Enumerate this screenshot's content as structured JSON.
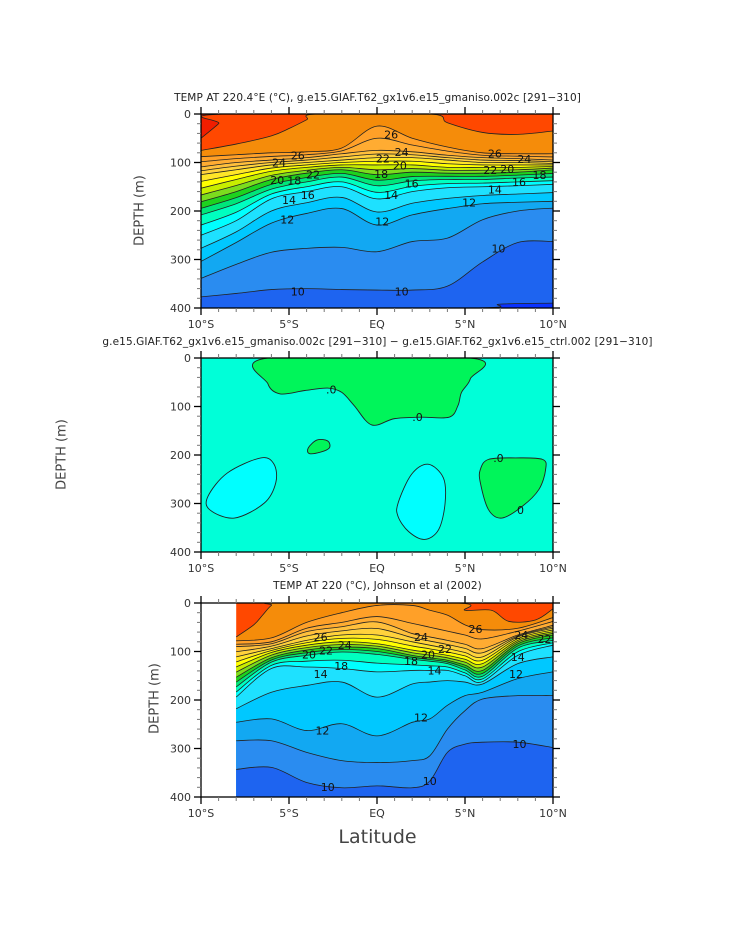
{
  "xlabel": "Latitude",
  "chart_data": [
    {
      "type": "contour",
      "id": "p1",
      "title": "TEMP AT 220.4°E (°C), g.e15.GIAF.T62_gx1v6.e15_gmaniso.002c [291−310]",
      "ylabel": "DEPTH (m)",
      "xlim": [
        -10,
        10
      ],
      "ylim": [
        400,
        0
      ],
      "xticks": [
        {
          "v": -10,
          "label": "10°S"
        },
        {
          "v": -5,
          "label": "5°S"
        },
        {
          "v": 0,
          "label": "EQ"
        },
        {
          "v": 5,
          "label": "5°N"
        },
        {
          "v": 10,
          "label": "10°N"
        }
      ],
      "yticks": [
        {
          "v": 0,
          "label": "0"
        },
        {
          "v": 100,
          "label": "100"
        },
        {
          "v": 200,
          "label": "200"
        },
        {
          "v": 300,
          "label": "300"
        },
        {
          "v": 400,
          "label": "400"
        }
      ],
      "data_lat_range": [
        -10,
        10
      ],
      "top_band": 28,
      "isotherm_lat": [
        -10,
        -8,
        -6,
        -4,
        -2,
        0,
        2,
        4,
        6,
        8,
        10
      ],
      "isotherms": {
        "10": [
          377,
          370,
          362,
          360,
          362,
          363,
          363,
          355,
          305,
          265,
          263
        ],
        "11": [
          339,
          310,
          285,
          277,
          275,
          284,
          263,
          256,
          218,
          200,
          194
        ],
        "12": [
          304,
          265,
          225,
          205,
          195,
          229,
          208,
          195,
          185,
          182,
          180
        ],
        "13": [
          277,
          243,
          200,
          183,
          172,
          202,
          184,
          174,
          168,
          165,
          162
        ],
        "14": [
          250,
          220,
          175,
          160,
          150,
          175,
          160,
          152,
          150,
          148,
          145
        ],
        "16": [
          208,
          185,
          155,
          140,
          130,
          148,
          138,
          135,
          135,
          132,
          130
        ],
        "18": [
          181,
          160,
          135,
          122,
          115,
          125,
          120,
          122,
          122,
          120,
          115
        ],
        "20": [
          153,
          135,
          118,
          110,
          105,
          105,
          105,
          110,
          110,
          110,
          108
        ],
        "22": [
          125,
          115,
          105,
          100,
          95,
          90,
          90,
          95,
          100,
          100,
          102
        ],
        "24": [
          109,
          100,
          95,
          90,
          82,
          75,
          78,
          85,
          90,
          92,
          95
        ],
        "26": [
          88,
          84,
          80,
          78,
          70,
          25,
          50,
          68,
          80,
          82,
          82
        ]
      },
      "extra_isotherms": [
        {
          "level": 27,
          "lat": [
            -10,
            -8,
            -6,
            -5,
            -4,
            -3.4,
            3,
            4,
            6,
            8,
            10
          ],
          "depth": [
            75,
            62,
            45,
            30,
            12,
            0,
            0,
            18,
            38,
            42,
            35
          ]
        },
        {
          "level": 28,
          "lat": [
            -10,
            -9,
            -8.5,
            10
          ],
          "depth": [
            50,
            20,
            0,
            0
          ]
        },
        {
          "level": 9,
          "lat": [
            -10,
            5.5,
            7,
            10
          ],
          "depth": [
            400,
            400,
            392,
            390
          ]
        }
      ],
      "labels": [
        {
          "t": "26",
          "lat": 0.8,
          "d": 42
        },
        {
          "t": "24",
          "lat": 1.4,
          "d": 78
        },
        {
          "t": "22",
          "lat": 1.3,
          "d": 92
        },
        {
          "t": "20",
          "lat": 1.3,
          "d": 106
        },
        {
          "t": "18",
          "lat": 1.2,
          "d": 124
        },
        {
          "t": "16",
          "lat": 1.0,
          "d": 143
        },
        {
          "t": "14",
          "lat": 0.8,
          "d": 167
        },
        {
          "t": "12",
          "lat": 0.3,
          "d": 222
        },
        {
          "t": "10",
          "lat": 1.4,
          "d": 366
        },
        {
          "t": "26",
          "lat": -4.5,
          "d": 86
        },
        {
          "t": "24",
          "lat": -4.6,
          "d": 100
        },
        {
          "t": "22",
          "lat": -4.6,
          "d": 112
        },
        {
          "t": "20",
          "lat": -4.7,
          "d": 124
        },
        {
          "t": "18",
          "lat": -4.7,
          "d": 137
        },
        {
          "t": "16",
          "lat": -4.9,
          "d": 155
        },
        {
          "t": "14",
          "lat": -5.0,
          "d": 177
        },
        {
          "t": "12",
          "lat": -5.1,
          "d": 218
        },
        {
          "t": "10",
          "lat": -4.5,
          "d": 366
        },
        {
          "t": "26",
          "lat": 6.7,
          "d": 81
        },
        {
          "t": "24",
          "lat": 7.4,
          "d": 93
        },
        {
          "t": "22",
          "lat": 7.4,
          "d": 103
        },
        {
          "t": "20",
          "lat": 7.4,
          "d": 113
        },
        {
          "t": "18",
          "lat": 7.3,
          "d": 126
        },
        {
          "t": "16",
          "lat": 7.1,
          "d": 140
        },
        {
          "t": "14",
          "lat": 6.7,
          "d": 156
        },
        {
          "t": "12",
          "lat": 6.2,
          "d": 182
        },
        {
          "t": "10",
          "lat": 6.9,
          "d": 277
        }
      ]
    },
    {
      "type": "contour",
      "id": "p2",
      "title": "g.e15.GIAF.T62_gx1v6.e15_gmaniso.002c [291−310] − g.e15.GIAF.T62_gx1v6.e15_ctrl.002 [291−310]",
      "ylabel": "DEPTH (m)",
      "xlim": [
        -10,
        10
      ],
      "ylim": [
        400,
        0
      ],
      "xticks": [
        {
          "v": -10,
          "label": "10°S"
        },
        {
          "v": -5,
          "label": "5°S"
        },
        {
          "v": 0,
          "label": "EQ"
        },
        {
          "v": 5,
          "label": "5°N"
        },
        {
          "v": 10,
          "label": "10°N"
        }
      ],
      "yticks": [
        {
          "v": 0,
          "label": "0"
        },
        {
          "v": 100,
          "label": "100"
        },
        {
          "v": 200,
          "label": "200"
        },
        {
          "v": 300,
          "label": "300"
        },
        {
          "v": 400,
          "label": "400"
        }
      ],
      "background_color": "#00ffd8",
      "regions": [
        {
          "sign": "positive",
          "color": "#00f55a",
          "points": [
            [
              -6.2,
              0
            ],
            [
              -6.2,
              53
            ],
            [
              -5.5,
              74
            ],
            [
              -4.1,
              67
            ],
            [
              -2.8,
              62
            ],
            [
              -2.0,
              71
            ],
            [
              -1.3,
              98
            ],
            [
              -0.3,
              138
            ],
            [
              1.0,
              125
            ],
            [
              2.5,
              122
            ],
            [
              4.1,
              122
            ],
            [
              4.6,
              98
            ],
            [
              4.8,
              71
            ],
            [
              5.3,
              43
            ],
            [
              5.3,
              0
            ]
          ]
        },
        {
          "sign": "positive",
          "color": "#00f55a",
          "points": [
            [
              -3.9,
              185
            ],
            [
              -3.4,
              169
            ],
            [
              -2.8,
              171
            ],
            [
              -2.7,
              185
            ],
            [
              -3.2,
              194
            ],
            [
              -3.85,
              197
            ]
          ]
        },
        {
          "sign": "negative",
          "color": "#00ffff",
          "points": [
            [
              -9.6,
              285
            ],
            [
              -8.5,
              237
            ],
            [
              -6.6,
              206
            ],
            [
              -5.85,
              219
            ],
            [
              -5.75,
              257
            ],
            [
              -6.4,
              299
            ],
            [
              -8.1,
              330
            ],
            [
              -9.5,
              313
            ]
          ]
        },
        {
          "sign": "negative",
          "color": "#00ffff",
          "points": [
            [
              1.2,
              299
            ],
            [
              1.96,
              240
            ],
            [
              2.9,
              219
            ],
            [
              3.77,
              247
            ],
            [
              3.87,
              299
            ],
            [
              3.5,
              354
            ],
            [
              2.7,
              374
            ],
            [
              1.8,
              358
            ],
            [
              1.2,
              327
            ]
          ]
        },
        {
          "sign": "positive",
          "color": "#00f55a",
          "points": [
            [
              5.87,
              230
            ],
            [
              6.34,
              209
            ],
            [
              7.87,
              206
            ],
            [
              9.4,
              209
            ],
            [
              9.58,
              230
            ],
            [
              9.2,
              271
            ],
            [
              8.25,
              306
            ],
            [
              7.1,
              330
            ],
            [
              6.34,
              313
            ],
            [
              5.87,
              257
            ]
          ]
        }
      ],
      "labels": [
        {
          "t": ".0",
          "lat": -2.6,
          "d": 65
        },
        {
          "t": ".0",
          "lat": 2.3,
          "d": 122
        },
        {
          "t": ".0",
          "lat": 6.9,
          "d": 206
        },
        {
          "t": "0",
          "lat": 8.15,
          "d": 313
        }
      ]
    },
    {
      "type": "contour",
      "id": "p3",
      "title": "TEMP AT 220 (°C), Johnson et al (2002)",
      "ylabel": "DEPTH (m)",
      "xlim": [
        -10,
        10
      ],
      "ylim": [
        400,
        0
      ],
      "xticks": [
        {
          "v": -10,
          "label": "10°S"
        },
        {
          "v": -5,
          "label": "5°S"
        },
        {
          "v": 0,
          "label": "EQ"
        },
        {
          "v": 5,
          "label": "5°N"
        },
        {
          "v": 10,
          "label": "10°N"
        }
      ],
      "yticks": [
        {
          "v": 0,
          "label": "0"
        },
        {
          "v": 100,
          "label": "100"
        },
        {
          "v": 200,
          "label": "200"
        },
        {
          "v": 300,
          "label": "300"
        },
        {
          "v": 400,
          "label": "400"
        }
      ],
      "data_lat_range": [
        -8,
        10
      ],
      "top_band": 27,
      "isotherm_lat": [
        -8,
        -6,
        -4,
        -2,
        0,
        2,
        3,
        4,
        5,
        6,
        8,
        10
      ],
      "isotherms": {
        "10": [
          343,
          339,
          370,
          381,
          377,
          381,
          367,
          308,
          291,
          287,
          287,
          298
        ],
        "11": [
          284,
          284,
          308,
          325,
          329,
          325,
          315,
          260,
          222,
          198,
          191,
          191
        ],
        "12": [
          246,
          239,
          263,
          249,
          274,
          246,
          239,
          211,
          191,
          184,
          156,
          142
        ],
        "13": [
          218,
          184,
          170,
          163,
          194,
          167,
          163,
          160,
          163,
          167,
          125,
          111
        ],
        "14": [
          194,
          135,
          132,
          135,
          142,
          139,
          139,
          139,
          150,
          162,
          108,
          87
        ],
        "16": [
          173,
          122,
          108,
          101,
          106,
          116,
          120,
          125,
          138,
          151,
          93,
          77
        ],
        "18": [
          153,
          113,
          97,
          91,
          94,
          108,
          113,
          118,
          128,
          139,
          84,
          66
        ],
        "20": [
          132,
          102,
          87,
          80,
          84,
          97,
          102,
          108,
          116,
          125,
          77,
          59
        ],
        "22": [
          111,
          94,
          77,
          66,
          66,
          80,
          87,
          94,
          102,
          111,
          70,
          52
        ],
        "24": [
          90,
          84,
          59,
          49,
          39,
          63,
          70,
          77,
          85,
          94,
          66,
          46
        ],
        "25": [
          85,
          80,
          52,
          40,
          28,
          42,
          50,
          58,
          66,
          74,
          58,
          38
        ],
        "26": [
          78,
          72,
          40,
          20,
          5,
          5,
          15,
          25,
          45,
          55,
          52,
          30
        ]
      },
      "extra_isotherms": [
        {
          "level": 27,
          "lat": [
            -8,
            -7,
            -6.5,
            -6,
            -5.5,
            4.5,
            5,
            6.5,
            7.5,
            9,
            10
          ],
          "depth": [
            70,
            45,
            25,
            5,
            0,
            0,
            15,
            15,
            38,
            35,
            12
          ]
        }
      ],
      "labels": [
        {
          "t": "26",
          "lat": -3.2,
          "d": 70
        },
        {
          "t": "24",
          "lat": -2.8,
          "d": 87
        },
        {
          "t": "22",
          "lat": -2.9,
          "d": 98
        },
        {
          "t": "20",
          "lat": -2.9,
          "d": 106
        },
        {
          "t": "18",
          "lat": -3.0,
          "d": 118
        },
        {
          "t": "14",
          "lat": -3.2,
          "d": 146
        },
        {
          "t": "12",
          "lat": -3.1,
          "d": 263
        },
        {
          "t": "10",
          "lat": -2.8,
          "d": 379
        },
        {
          "t": "24",
          "lat": 2.5,
          "d": 70
        },
        {
          "t": "22",
          "lat": 2.9,
          "d": 95
        },
        {
          "t": "20",
          "lat": 2.9,
          "d": 106
        },
        {
          "t": "18",
          "lat": 2.9,
          "d": 120
        },
        {
          "t": "14",
          "lat": 2.3,
          "d": 139
        },
        {
          "t": "12",
          "lat": 2.5,
          "d": 236
        },
        {
          "t": "10",
          "lat": 3.0,
          "d": 367
        },
        {
          "t": "26",
          "lat": 5.6,
          "d": 54
        },
        {
          "t": "24",
          "lat": 8.2,
          "d": 66
        },
        {
          "t": "22",
          "lat": 8.6,
          "d": 74
        },
        {
          "t": "14",
          "lat": 8.0,
          "d": 111
        },
        {
          "t": "12",
          "lat": 7.9,
          "d": 146
        },
        {
          "t": "10",
          "lat": 8.1,
          "d": 291
        }
      ]
    }
  ],
  "band_colors": {
    "8": "#0a32ff",
    "9": "#1e64f0",
    "10": "#2a8cf0",
    "11": "#12a8f2",
    "12": "#00c8ff",
    "13": "#1ee1ff",
    "14": "#00ffff",
    "15": "#00ffc0",
    "16": "#00e67a",
    "17": "#1ed21e",
    "18": "#7cdc1e",
    "19": "#c8ee00",
    "20": "#ffff00",
    "21": "#ffe628",
    "22": "#ffd23c",
    "23": "#ffc03c",
    "24": "#ffac32",
    "25": "#ffa028",
    "26": "#f58c0a",
    "27": "#ff4800",
    "28": "#f01e00"
  }
}
